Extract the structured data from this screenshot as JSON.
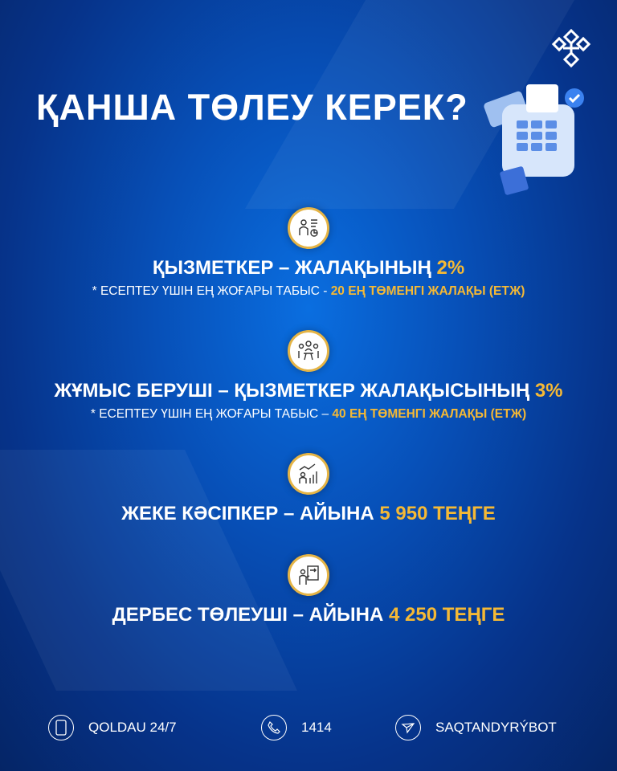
{
  "title": "ҚАНША ТӨЛЕУ КЕРЕК?",
  "items": [
    {
      "icon": "employee-chart-icon",
      "head": "ҚЫЗМЕТКЕР – ЖАЛАҚЫНЫҢ ",
      "highlight": "2%",
      "tail": "",
      "note": "* ЕСЕПТЕУ ҮШІН ЕҢ ЖОҒАРЫ ТАБЫС - ",
      "note_highlight": "20 ЕҢ ТӨМЕНГІ ЖАЛАҚЫ (ЕТЖ)"
    },
    {
      "icon": "meeting-icon",
      "head": "ЖҰМЫС БЕРУШІ – ҚЫЗМЕТКЕР ЖАЛАҚЫСЫНЫҢ ",
      "highlight": "3%",
      "tail": "",
      "note": "* ЕСЕПТЕУ ҮШІН ЕҢ ЖОҒАРЫ ТАБЫС – ",
      "note_highlight": "40 ЕҢ ТӨМЕНГІ ЖАЛАҚЫ (ЕТЖ)"
    },
    {
      "icon": "business-growth-icon",
      "head": "ЖЕКЕ КӘСІПКЕР – АЙЫНА ",
      "highlight": "5 950",
      "tail": " ТЕҢГЕ"
    },
    {
      "icon": "presenter-icon",
      "head": "ДЕРБЕС ТӨЛЕУШІ – АЙЫНА ",
      "highlight": "4 250",
      "tail": " ТЕҢГЕ"
    }
  ],
  "footer": {
    "support": "QOLDAU 24/7",
    "phone": "1414",
    "bot": "SAQTANDYRÝBOT"
  },
  "colors": {
    "accent": "#f5b935",
    "background": "#0750b8"
  }
}
